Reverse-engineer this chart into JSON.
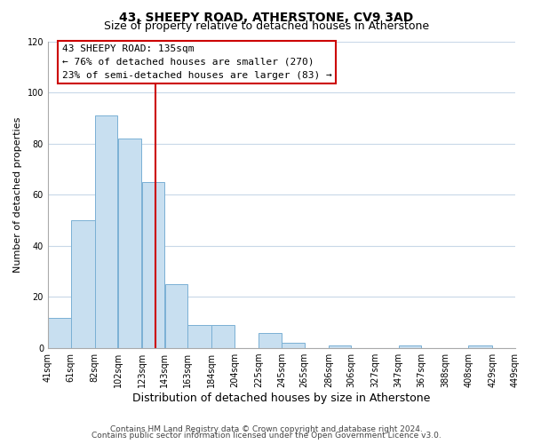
{
  "title": "43, SHEEPY ROAD, ATHERSTONE, CV9 3AD",
  "subtitle": "Size of property relative to detached houses in Atherstone",
  "xlabel": "Distribution of detached houses by size in Atherstone",
  "ylabel": "Number of detached properties",
  "bar_left_edges": [
    41,
    61,
    82,
    102,
    123,
    143,
    163,
    184,
    204,
    225,
    245,
    265,
    286,
    306,
    327,
    347,
    367,
    388,
    408,
    429
  ],
  "bar_widths": [
    20,
    21,
    20,
    21,
    20,
    20,
    21,
    20,
    21,
    20,
    20,
    21,
    20,
    21,
    20,
    20,
    21,
    20,
    21,
    20
  ],
  "bar_heights": [
    12,
    50,
    91,
    82,
    65,
    25,
    9,
    9,
    0,
    6,
    2,
    0,
    1,
    0,
    0,
    1,
    0,
    0,
    1,
    0
  ],
  "tick_labels": [
    "41sqm",
    "61sqm",
    "82sqm",
    "102sqm",
    "123sqm",
    "143sqm",
    "163sqm",
    "184sqm",
    "204sqm",
    "225sqm",
    "245sqm",
    "265sqm",
    "286sqm",
    "306sqm",
    "327sqm",
    "347sqm",
    "367sqm",
    "388sqm",
    "408sqm",
    "429sqm",
    "449sqm"
  ],
  "tick_positions": [
    41,
    61,
    82,
    102,
    123,
    143,
    163,
    184,
    204,
    225,
    245,
    265,
    286,
    306,
    327,
    347,
    367,
    388,
    408,
    429,
    449
  ],
  "bar_color": "#c8dff0",
  "bar_edge_color": "#7ab0d4",
  "reference_line_x": 135,
  "reference_line_color": "#cc0000",
  "annotation_line1": "43 SHEEPY ROAD: 135sqm",
  "annotation_line2": "← 76% of detached houses are smaller (270)",
  "annotation_line3": "23% of semi-detached houses are larger (83) →",
  "annotation_box_color": "#ffffff",
  "annotation_box_edge": "#cc0000",
  "ylim": [
    0,
    120
  ],
  "xlim": [
    41,
    449
  ],
  "yticks": [
    0,
    20,
    40,
    60,
    80,
    100,
    120
  ],
  "footer1": "Contains HM Land Registry data © Crown copyright and database right 2024.",
  "footer2": "Contains public sector information licensed under the Open Government Licence v3.0.",
  "background_color": "#ffffff",
  "grid_color": "#c8d8e8",
  "title_fontsize": 10,
  "subtitle_fontsize": 9,
  "xlabel_fontsize": 9,
  "ylabel_fontsize": 8,
  "tick_fontsize": 7,
  "annotation_fontsize": 8,
  "footer_fontsize": 6.5
}
